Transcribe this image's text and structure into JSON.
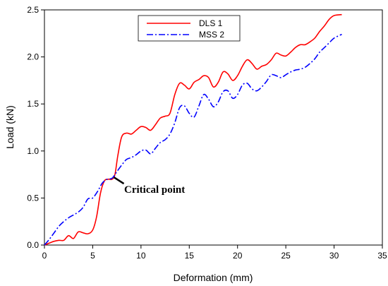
{
  "chart_data": {
    "type": "line",
    "xlabel": "Deformation (mm)",
    "ylabel": "Load (kN)",
    "xlim": [
      0,
      35
    ],
    "ylim": [
      0,
      2.5
    ],
    "xticks": [
      "0",
      "5",
      "10",
      "15",
      "20",
      "25",
      "30",
      "35"
    ],
    "yticks": [
      "0.0",
      "0.5",
      "1.0",
      "1.5",
      "2.0",
      "2.5"
    ],
    "legend_position": "top-center",
    "series": [
      {
        "name": "DLS 1",
        "color": "#ff0000",
        "dash": "solid",
        "points": [
          [
            0,
            0
          ],
          [
            0.5,
            0.02
          ],
          [
            1,
            0.04
          ],
          [
            1.5,
            0.05
          ],
          [
            2,
            0.05
          ],
          [
            2.5,
            0.1
          ],
          [
            3,
            0.07
          ],
          [
            3.5,
            0.14
          ],
          [
            4,
            0.13
          ],
          [
            4.5,
            0.12
          ],
          [
            5,
            0.16
          ],
          [
            5.4,
            0.3
          ],
          [
            5.8,
            0.55
          ],
          [
            6.2,
            0.68
          ],
          [
            6.6,
            0.7
          ],
          [
            7,
            0.7
          ],
          [
            7.3,
            0.75
          ],
          [
            7.6,
            0.95
          ],
          [
            8,
            1.15
          ],
          [
            8.5,
            1.19
          ],
          [
            9,
            1.18
          ],
          [
            9.5,
            1.22
          ],
          [
            10,
            1.26
          ],
          [
            10.5,
            1.25
          ],
          [
            11,
            1.22
          ],
          [
            11.5,
            1.28
          ],
          [
            12,
            1.35
          ],
          [
            12.5,
            1.37
          ],
          [
            13,
            1.4
          ],
          [
            13.5,
            1.6
          ],
          [
            14,
            1.72
          ],
          [
            14.5,
            1.7
          ],
          [
            15,
            1.66
          ],
          [
            15.5,
            1.73
          ],
          [
            16,
            1.76
          ],
          [
            16.5,
            1.8
          ],
          [
            17,
            1.78
          ],
          [
            17.5,
            1.68
          ],
          [
            18,
            1.73
          ],
          [
            18.5,
            1.84
          ],
          [
            19,
            1.82
          ],
          [
            19.5,
            1.75
          ],
          [
            20,
            1.8
          ],
          [
            20.5,
            1.9
          ],
          [
            21,
            1.97
          ],
          [
            21.5,
            1.93
          ],
          [
            22,
            1.87
          ],
          [
            22.5,
            1.9
          ],
          [
            23,
            1.92
          ],
          [
            23.5,
            1.97
          ],
          [
            24,
            2.04
          ],
          [
            24.5,
            2.02
          ],
          [
            25,
            2.01
          ],
          [
            25.5,
            2.05
          ],
          [
            26,
            2.1
          ],
          [
            26.5,
            2.13
          ],
          [
            27,
            2.13
          ],
          [
            27.5,
            2.16
          ],
          [
            28,
            2.2
          ],
          [
            28.5,
            2.27
          ],
          [
            29,
            2.33
          ],
          [
            29.5,
            2.4
          ],
          [
            30,
            2.44
          ],
          [
            30.8,
            2.45
          ]
        ]
      },
      {
        "name": "MSS 2",
        "color": "#0000ff",
        "dash": "dash-dot",
        "points": [
          [
            0,
            0
          ],
          [
            0.5,
            0.06
          ],
          [
            1,
            0.13
          ],
          [
            1.5,
            0.2
          ],
          [
            2,
            0.25
          ],
          [
            2.5,
            0.29
          ],
          [
            3,
            0.32
          ],
          [
            3.5,
            0.35
          ],
          [
            4,
            0.4
          ],
          [
            4.5,
            0.49
          ],
          [
            5,
            0.5
          ],
          [
            5.5,
            0.57
          ],
          [
            6,
            0.66
          ],
          [
            6.5,
            0.7
          ],
          [
            7,
            0.71
          ],
          [
            7.5,
            0.78
          ],
          [
            8,
            0.85
          ],
          [
            8.5,
            0.91
          ],
          [
            9,
            0.93
          ],
          [
            9.5,
            0.96
          ],
          [
            10,
            1.0
          ],
          [
            10.5,
            1.01
          ],
          [
            11,
            0.97
          ],
          [
            11.5,
            1.03
          ],
          [
            12,
            1.09
          ],
          [
            12.5,
            1.12
          ],
          [
            13,
            1.18
          ],
          [
            13.5,
            1.3
          ],
          [
            14,
            1.46
          ],
          [
            14.5,
            1.48
          ],
          [
            15,
            1.4
          ],
          [
            15.5,
            1.36
          ],
          [
            16,
            1.48
          ],
          [
            16.5,
            1.6
          ],
          [
            17,
            1.55
          ],
          [
            17.5,
            1.47
          ],
          [
            18,
            1.52
          ],
          [
            18.5,
            1.63
          ],
          [
            19,
            1.64
          ],
          [
            19.5,
            1.56
          ],
          [
            20,
            1.6
          ],
          [
            20.5,
            1.7
          ],
          [
            21,
            1.72
          ],
          [
            21.5,
            1.66
          ],
          [
            22,
            1.64
          ],
          [
            22.5,
            1.68
          ],
          [
            23,
            1.74
          ],
          [
            23.5,
            1.81
          ],
          [
            24,
            1.8
          ],
          [
            24.5,
            1.78
          ],
          [
            25,
            1.81
          ],
          [
            25.5,
            1.84
          ],
          [
            26,
            1.86
          ],
          [
            26.5,
            1.87
          ],
          [
            27,
            1.89
          ],
          [
            27.5,
            1.93
          ],
          [
            28,
            1.98
          ],
          [
            28.5,
            2.05
          ],
          [
            29,
            2.1
          ],
          [
            29.5,
            2.15
          ],
          [
            30,
            2.2
          ],
          [
            30.8,
            2.24
          ]
        ]
      }
    ],
    "annotation": {
      "text": "Critical point",
      "x": 7.2,
      "y": 0.72
    }
  }
}
